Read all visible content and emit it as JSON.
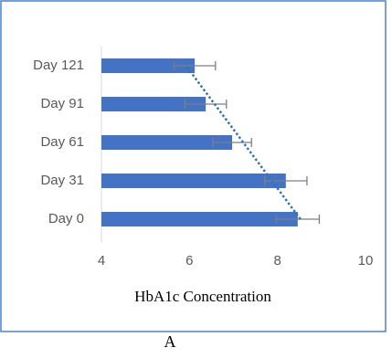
{
  "chart_data": {
    "type": "hbar",
    "categories": [
      "Day 0",
      "Day 31",
      "Day 61",
      "Day 91",
      "Day 121"
    ],
    "values": [
      8.46,
      8.19,
      6.97,
      6.37,
      6.12
    ],
    "errors": [
      0.49,
      0.48,
      0.44,
      0.47,
      0.47
    ],
    "color": "#4472c4",
    "error_color": "#7f7f7f",
    "trendline": "linear",
    "trendline_color": "#2e75b6",
    "xlim": [
      4,
      10
    ],
    "xticks": [
      4,
      6,
      8,
      10
    ],
    "xlabel": "HbA1c Concentration",
    "caption": "A"
  }
}
